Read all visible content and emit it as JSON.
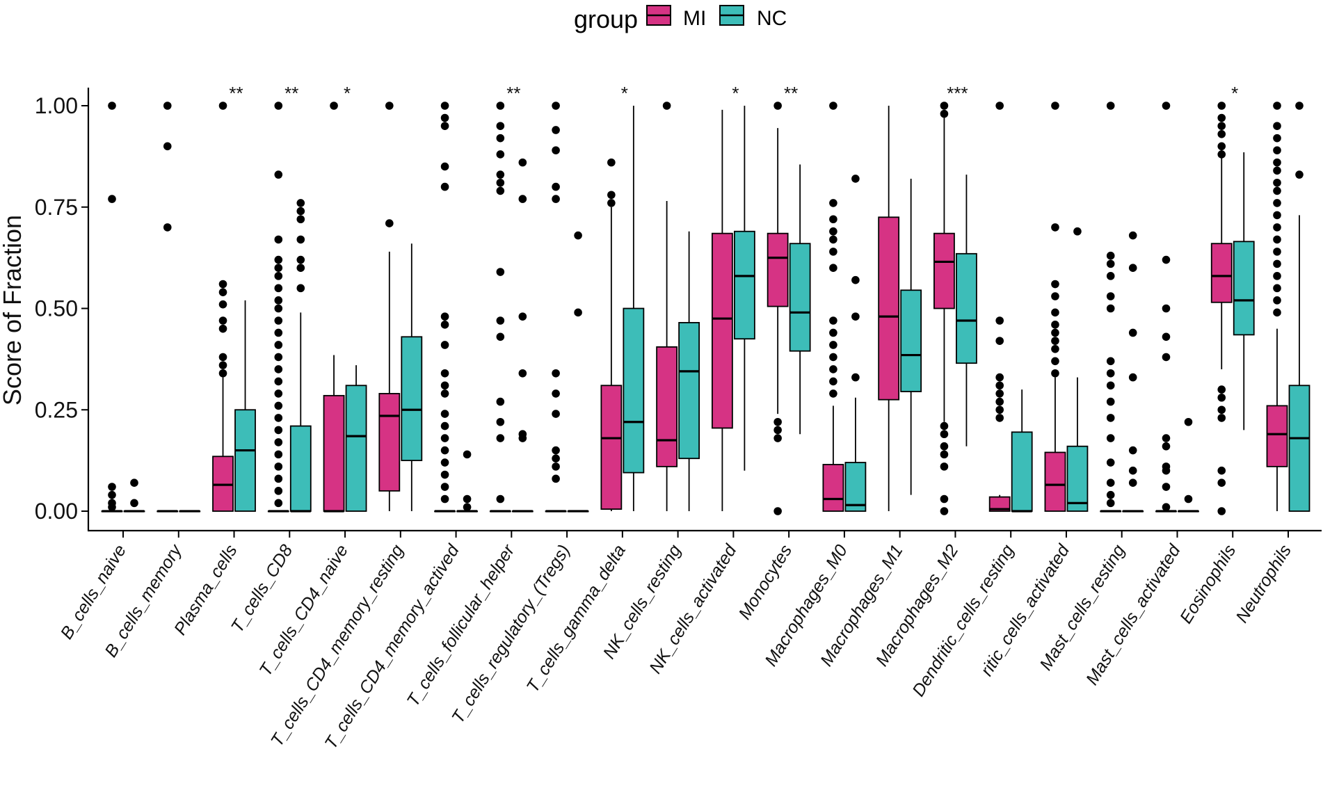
{
  "chart_data": {
    "type": "box",
    "ylabel": "Score of Fraction",
    "xlabel": "",
    "ylim": [
      -0.04,
      1.05
    ],
    "yticks": [
      0.0,
      0.25,
      0.5,
      0.75,
      1.0
    ],
    "ytick_labels": [
      "0.00",
      "0.25",
      "0.50",
      "0.75",
      "1.00"
    ],
    "grid": false,
    "legend": {
      "title": "group",
      "placement": "top-center",
      "items": [
        {
          "name": "MI",
          "color": "#D63384"
        },
        {
          "name": "NC",
          "color": "#3DBDB8"
        }
      ]
    },
    "categories": [
      "B_cells_naive",
      "B_cells_memory",
      "Plasma_cells",
      "T_cells_CD8",
      "T_cells_CD4_naive",
      "T_cells_CD4_memory_resting",
      "T_cells_CD4_memory_actived",
      "T_cells_follicular_helper",
      "T_cells_regulatory_(Tregs)",
      "T_cells_gamma_delta",
      "NK_cells_resting",
      "NK_cells_activated",
      "Monocytes",
      "Macrophages_M0",
      "Macrophages_M1",
      "Macrophages_M2",
      "Dendritic_cells_resting",
      "ritic_cells_activated",
      "Mast_cells_resting",
      "Mast_cells_activated",
      "Eosinophils",
      "Neutrophils"
    ],
    "significance": [
      "",
      "",
      "**",
      "**",
      "*",
      "",
      "",
      "**",
      "",
      "*",
      "",
      "*",
      "**",
      "",
      "",
      "***",
      "",
      "",
      "",
      "",
      "*",
      ""
    ],
    "series": [
      {
        "name": "MI",
        "boxes": [
          {
            "min": 0,
            "q1": 0,
            "median": 0,
            "q3": 0,
            "max": 0,
            "outliers": [
              1.0,
              0.77,
              0.06,
              0.04,
              0.02,
              0.01
            ]
          },
          {
            "min": 0,
            "q1": 0,
            "median": 0,
            "q3": 0,
            "max": 0,
            "outliers": [
              1.0,
              0.9,
              0.7
            ]
          },
          {
            "min": 0,
            "q1": 0,
            "median": 0.065,
            "q3": 0.135,
            "max": 0.33,
            "outliers": [
              1.0,
              0.56,
              0.54,
              0.51,
              0.47,
              0.45,
              0.38,
              0.36,
              0.34
            ]
          },
          {
            "min": 0,
            "q1": 0,
            "median": 0,
            "q3": 0,
            "max": 0,
            "outliers": [
              1.0,
              0.83,
              0.67,
              0.62,
              0.6,
              0.58,
              0.55,
              0.52,
              0.5,
              0.47,
              0.44,
              0.41,
              0.38,
              0.35,
              0.32,
              0.29,
              0.26,
              0.23,
              0.2,
              0.17,
              0.14,
              0.11,
              0.08,
              0.05,
              0.02
            ]
          },
          {
            "min": 0,
            "q1": 0,
            "median": 0,
            "q3": 0.285,
            "max": 0.385,
            "outliers": [
              1.0
            ]
          },
          {
            "min": 0,
            "q1": 0.05,
            "median": 0.235,
            "q3": 0.29,
            "max": 0.64,
            "outliers": [
              1.0,
              0.71
            ]
          },
          {
            "min": 0,
            "q1": 0,
            "median": 0,
            "q3": 0,
            "max": 0,
            "outliers": [
              1.0,
              0.97,
              0.95,
              0.85,
              0.8,
              0.48,
              0.46,
              0.41,
              0.34,
              0.31,
              0.29,
              0.24,
              0.21,
              0.18,
              0.15,
              0.12,
              0.09,
              0.06,
              0.03
            ]
          },
          {
            "min": 0,
            "q1": 0,
            "median": 0,
            "q3": 0,
            "max": 0,
            "outliers": [
              1.0,
              0.95,
              0.92,
              0.88,
              0.83,
              0.81,
              0.79,
              0.59,
              0.47,
              0.43,
              0.27,
              0.22,
              0.18,
              0.03
            ]
          },
          {
            "min": 0,
            "q1": 0,
            "median": 0,
            "q3": 0,
            "max": 0,
            "outliers": [
              1.0,
              0.94,
              0.89,
              0.8,
              0.77,
              0.34,
              0.29,
              0.24,
              0.15,
              0.13,
              0.11,
              0.08
            ]
          },
          {
            "min": 0,
            "q1": 0.005,
            "median": 0.18,
            "q3": 0.31,
            "max": 0.75,
            "outliers": [
              0.86,
              0.78,
              0.76
            ]
          },
          {
            "min": 0,
            "q1": 0.11,
            "median": 0.175,
            "q3": 0.405,
            "max": 0.765,
            "outliers": [
              1.0
            ]
          },
          {
            "min": 0,
            "q1": 0.205,
            "median": 0.475,
            "q3": 0.685,
            "max": 0.99,
            "outliers": []
          },
          {
            "min": 0.24,
            "q1": 0.505,
            "median": 0.625,
            "q3": 0.685,
            "max": 0.945,
            "outliers": [
              1.0,
              0.22,
              0.2,
              0.18,
              0.0
            ]
          },
          {
            "min": 0,
            "q1": 0,
            "median": 0.03,
            "q3": 0.115,
            "max": 0.26,
            "outliers": [
              1.0,
              0.76,
              0.72,
              0.69,
              0.67,
              0.64,
              0.6,
              0.47,
              0.44,
              0.41,
              0.38,
              0.35,
              0.32,
              0.29
            ]
          },
          {
            "min": 0,
            "q1": 0.275,
            "median": 0.48,
            "q3": 0.725,
            "max": 1.0,
            "outliers": []
          },
          {
            "min": 0.22,
            "q1": 0.5,
            "median": 0.615,
            "q3": 0.685,
            "max": 0.97,
            "outliers": [
              1.0,
              0.98,
              0.21,
              0.19,
              0.16,
              0.14,
              0.11,
              0.03,
              0.0
            ]
          },
          {
            "min": 0,
            "q1": 0,
            "median": 0.005,
            "q3": 0.035,
            "max": 0.04,
            "outliers": [
              1.0,
              0.47,
              0.42,
              0.33,
              0.31,
              0.29,
              0.27,
              0.25,
              0.23
            ]
          },
          {
            "min": 0,
            "q1": 0,
            "median": 0.065,
            "q3": 0.145,
            "max": 0.33,
            "outliers": [
              1.0,
              0.7,
              0.56,
              0.53,
              0.49,
              0.46,
              0.44,
              0.42,
              0.4,
              0.37,
              0.34
            ]
          },
          {
            "min": 0,
            "q1": 0,
            "median": 0,
            "q3": 0,
            "max": 0,
            "outliers": [
              1.0,
              0.63,
              0.61,
              0.58,
              0.53,
              0.5,
              0.37,
              0.34,
              0.31,
              0.27,
              0.23,
              0.18,
              0.12,
              0.07,
              0.04,
              0.02
            ]
          },
          {
            "min": 0,
            "q1": 0,
            "median": 0,
            "q3": 0,
            "max": 0,
            "outliers": [
              1.0,
              0.62,
              0.5,
              0.43,
              0.38,
              0.18,
              0.16,
              0.11,
              0.1,
              0.06,
              0.01
            ]
          },
          {
            "min": 0.35,
            "q1": 0.515,
            "median": 0.58,
            "q3": 0.66,
            "max": 0.9,
            "outliers": [
              1.0,
              0.97,
              0.95,
              0.93,
              0.9,
              0.88,
              0.3,
              0.28,
              0.25,
              0.23,
              0.1,
              0.07,
              0.0
            ]
          },
          {
            "min": 0,
            "q1": 0.11,
            "median": 0.19,
            "q3": 0.26,
            "max": 0.45,
            "outliers": [
              1.0,
              0.95,
              0.92,
              0.89,
              0.86,
              0.84,
              0.81,
              0.79,
              0.76,
              0.73,
              0.7,
              0.67,
              0.64,
              0.61,
              0.58,
              0.55,
              0.52,
              0.49
            ]
          }
        ]
      },
      {
        "name": "NC",
        "boxes": [
          {
            "min": 0,
            "q1": 0,
            "median": 0,
            "q3": 0,
            "max": 0,
            "outliers": [
              0.07,
              0.02
            ]
          },
          {
            "min": 0,
            "q1": 0,
            "median": 0,
            "q3": 0,
            "max": 0,
            "outliers": []
          },
          {
            "min": 0,
            "q1": 0,
            "median": 0.15,
            "q3": 0.25,
            "max": 0.52,
            "outliers": []
          },
          {
            "min": 0,
            "q1": 0,
            "median": 0,
            "q3": 0.21,
            "max": 0.49,
            "outliers": [
              0.76,
              0.74,
              0.72,
              0.67,
              0.62,
              0.6,
              0.55
            ]
          },
          {
            "min": 0,
            "q1": 0,
            "median": 0.185,
            "q3": 0.31,
            "max": 0.36,
            "outliers": []
          },
          {
            "min": 0,
            "q1": 0.125,
            "median": 0.25,
            "q3": 0.43,
            "max": 0.66,
            "outliers": []
          },
          {
            "min": 0,
            "q1": 0,
            "median": 0,
            "q3": 0,
            "max": 0,
            "outliers": [
              0.14,
              0.03,
              0.01
            ]
          },
          {
            "min": 0,
            "q1": 0,
            "median": 0,
            "q3": 0,
            "max": 0,
            "outliers": [
              0.86,
              0.77,
              0.48,
              0.34,
              0.19,
              0.18
            ]
          },
          {
            "min": 0,
            "q1": 0,
            "median": 0,
            "q3": 0,
            "max": 0,
            "outliers": [
              0.68,
              0.49
            ]
          },
          {
            "min": 0,
            "q1": 0.095,
            "median": 0.22,
            "q3": 0.5,
            "max": 1.0,
            "outliers": []
          },
          {
            "min": 0,
            "q1": 0.13,
            "median": 0.345,
            "q3": 0.465,
            "max": 0.69,
            "outliers": []
          },
          {
            "min": 0.1,
            "q1": 0.425,
            "median": 0.58,
            "q3": 0.69,
            "max": 1.0,
            "outliers": []
          },
          {
            "min": 0.19,
            "q1": 0.395,
            "median": 0.49,
            "q3": 0.66,
            "max": 0.855,
            "outliers": []
          },
          {
            "min": 0,
            "q1": 0,
            "median": 0.015,
            "q3": 0.12,
            "max": 0.28,
            "outliers": [
              0.82,
              0.57,
              0.48,
              0.33
            ]
          },
          {
            "min": 0.04,
            "q1": 0.295,
            "median": 0.385,
            "q3": 0.545,
            "max": 0.82,
            "outliers": []
          },
          {
            "min": 0.16,
            "q1": 0.365,
            "median": 0.47,
            "q3": 0.635,
            "max": 0.83,
            "outliers": []
          },
          {
            "min": 0,
            "q1": 0,
            "median": 0,
            "q3": 0.195,
            "max": 0.3,
            "outliers": []
          },
          {
            "min": 0,
            "q1": 0,
            "median": 0.02,
            "q3": 0.16,
            "max": 0.33,
            "outliers": [
              0.69
            ]
          },
          {
            "min": 0,
            "q1": 0,
            "median": 0,
            "q3": 0,
            "max": 0,
            "outliers": [
              0.68,
              0.6,
              0.44,
              0.33,
              0.15,
              0.1,
              0.07
            ]
          },
          {
            "min": 0,
            "q1": 0,
            "median": 0,
            "q3": 0,
            "max": 0,
            "outliers": [
              0.22,
              0.03
            ]
          },
          {
            "min": 0.2,
            "q1": 0.435,
            "median": 0.52,
            "q3": 0.665,
            "max": 0.885,
            "outliers": []
          },
          {
            "min": 0,
            "q1": 0,
            "median": 0.18,
            "q3": 0.31,
            "max": 0.73,
            "outliers": [
              1.0,
              0.83
            ]
          }
        ]
      }
    ]
  }
}
